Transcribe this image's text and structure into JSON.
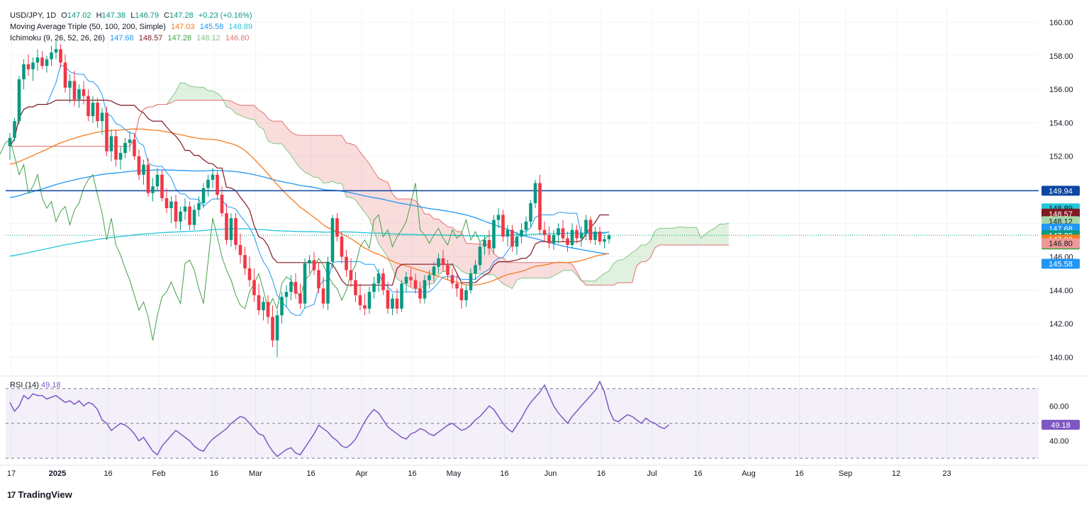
{
  "header": {
    "symbol": "USD/JPY, 1D",
    "o_label": "O",
    "o": "147.02",
    "h_label": "H",
    "h": "147.38",
    "l_label": "L",
    "l": "146.79",
    "c_label": "C",
    "c": "147.28",
    "change": "+0.23 (+0.16%)",
    "ma_label": "Moving Average Triple (50, 100, 200, Simple)",
    "ma50": "147.03",
    "ma100": "145.58",
    "ma200": "148.89",
    "ichi_label": "Ichimoku (9, 26, 52, 26, 26)",
    "ichi_conv": "147.68",
    "ichi_base": "148.57",
    "ichi_lag": "147.28",
    "ichi_spa": "148.12",
    "ichi_spb": "146.80",
    "rsi_label": "RSI (14)",
    "rsi_value": "49.18"
  },
  "branding": {
    "name": "TradingView",
    "mark": "17"
  },
  "colors": {
    "up": "#089981",
    "down": "#f23645",
    "ma50": "#f57c1f",
    "ma100": "#2196f3",
    "ma200": "#26c6da",
    "conversion": "#2196f3",
    "base": "#801922",
    "lagging": "#43a047",
    "cloud_bull": "#a5d6a7",
    "cloud_bear": "#ef9a9a",
    "hline": "#0d47a1",
    "rsi": "#7e57c2"
  },
  "chart_data": [
    {
      "type": "candlestick",
      "title": "USD/JPY, 1D",
      "ylim": [
        139,
        161
      ],
      "y_ticks": [
        "160.00",
        "158.00",
        "156.00",
        "154.00",
        "152.00",
        "150.00",
        "148.00",
        "146.00",
        "144.00",
        "142.00",
        "140.00"
      ],
      "x_tick_labels": [
        "17",
        "2025",
        "16",
        "Feb",
        "16",
        "Mar",
        "16",
        "Apr",
        "16",
        "May",
        "16",
        "Jun",
        "16",
        "Jul",
        "16",
        "Aug",
        "16",
        "Sep",
        "12",
        "23"
      ],
      "horizontal_line": 149.94,
      "last_close_line": 147.28,
      "price_labels": [
        {
          "text": "149.94",
          "value": 149.94,
          "color": "#0d47a1"
        },
        {
          "text": "148.89",
          "value": 148.89,
          "color": "#26c6da"
        },
        {
          "text": "148.57",
          "value": 148.57,
          "color": "#801922"
        },
        {
          "text": "148.12",
          "value": 148.12,
          "color": "#a5d6a7"
        },
        {
          "text": "147.68",
          "value": 147.68,
          "color": "#2196f3"
        },
        {
          "text": "147.28",
          "value": 147.28,
          "color": "#089981"
        },
        {
          "text": "147.28",
          "value": 147.28,
          "color": "#43a047"
        },
        {
          "text": "147.03",
          "value": 147.03,
          "color": "#f57c1f"
        },
        {
          "text": "146.80",
          "value": 146.8,
          "color": "#ef9a9a"
        },
        {
          "text": "145.58",
          "value": 145.58,
          "color": "#2196f3"
        }
      ],
      "candles_ohlc_approx": [
        [
          152.6,
          153.4,
          151.8,
          153.1
        ],
        [
          153.1,
          154.3,
          152.9,
          154.1
        ],
        [
          154.1,
          156.8,
          153.9,
          156.6
        ],
        [
          156.6,
          157.8,
          156.0,
          157.5
        ],
        [
          157.5,
          158.1,
          156.8,
          157.2
        ],
        [
          157.2,
          157.9,
          156.5,
          157.6
        ],
        [
          157.6,
          158.4,
          157.1,
          157.9
        ],
        [
          157.9,
          158.3,
          157.2,
          157.4
        ],
        [
          157.4,
          158.0,
          157.0,
          157.8
        ],
        [
          157.8,
          158.6,
          157.4,
          158.2
        ],
        [
          158.2,
          158.9,
          157.8,
          158.4
        ],
        [
          158.4,
          158.7,
          157.3,
          157.6
        ],
        [
          157.6,
          158.1,
          155.8,
          156.1
        ],
        [
          156.1,
          156.9,
          155.2,
          156.5
        ],
        [
          156.5,
          157.1,
          155.0,
          155.4
        ],
        [
          155.4,
          156.3,
          154.9,
          156.0
        ],
        [
          156.0,
          156.5,
          155.1,
          155.6
        ],
        [
          155.6,
          156.0,
          154.1,
          154.4
        ],
        [
          154.4,
          155.6,
          154.0,
          155.2
        ],
        [
          155.2,
          155.5,
          153.7,
          154.1
        ],
        [
          154.1,
          154.9,
          153.3,
          154.6
        ],
        [
          154.6,
          155.0,
          152.0,
          152.3
        ],
        [
          152.3,
          153.6,
          151.7,
          153.2
        ],
        [
          153.2,
          153.6,
          151.4,
          151.8
        ],
        [
          151.8,
          152.6,
          151.2,
          152.2
        ],
        [
          152.2,
          153.1,
          151.9,
          152.8
        ],
        [
          152.8,
          153.5,
          152.3,
          153.0
        ],
        [
          153.0,
          153.4,
          151.8,
          152.0
        ],
        [
          152.0,
          152.4,
          150.6,
          150.9
        ],
        [
          150.9,
          151.8,
          150.3,
          151.5
        ],
        [
          151.5,
          151.9,
          149.6,
          149.8
        ],
        [
          149.8,
          150.7,
          149.3,
          150.2
        ],
        [
          150.2,
          151.3,
          149.9,
          150.9
        ],
        [
          150.9,
          151.2,
          149.3,
          149.5
        ],
        [
          149.5,
          150.1,
          148.6,
          148.9
        ],
        [
          148.9,
          149.6,
          148.0,
          149.3
        ],
        [
          149.3,
          149.7,
          147.7,
          148.1
        ],
        [
          148.1,
          149.0,
          147.6,
          148.7
        ],
        [
          148.7,
          149.5,
          148.2,
          149.0
        ],
        [
          149.0,
          149.3,
          147.6,
          147.9
        ],
        [
          147.9,
          149.1,
          147.6,
          148.8
        ],
        [
          148.8,
          149.6,
          148.4,
          149.2
        ],
        [
          149.2,
          150.4,
          148.9,
          150.1
        ],
        [
          150.1,
          150.9,
          149.6,
          150.6
        ],
        [
          150.6,
          151.3,
          150.1,
          150.9
        ],
        [
          150.9,
          151.1,
          149.4,
          149.7
        ],
        [
          149.7,
          150.2,
          148.4,
          148.6
        ],
        [
          148.6,
          149.2,
          146.7,
          147.0
        ],
        [
          147.0,
          148.6,
          146.6,
          148.3
        ],
        [
          148.3,
          148.6,
          146.4,
          146.7
        ],
        [
          146.7,
          147.4,
          145.6,
          146.1
        ],
        [
          146.1,
          146.6,
          144.9,
          145.3
        ],
        [
          145.3,
          146.0,
          144.2,
          144.6
        ],
        [
          144.6,
          145.3,
          143.3,
          143.7
        ],
        [
          143.7,
          144.4,
          142.5,
          142.8
        ],
        [
          142.8,
          143.6,
          142.2,
          143.3
        ],
        [
          143.3,
          143.7,
          142.0,
          142.4
        ],
        [
          142.4,
          143.1,
          140.6,
          141.0
        ],
        [
          141.0,
          142.8,
          140.0,
          142.5
        ],
        [
          142.5,
          143.9,
          142.0,
          143.6
        ],
        [
          143.6,
          144.3,
          143.0,
          143.9
        ],
        [
          143.9,
          144.9,
          143.4,
          144.5
        ],
        [
          144.5,
          145.0,
          143.5,
          143.8
        ],
        [
          143.8,
          144.4,
          142.9,
          143.2
        ],
        [
          143.2,
          145.9,
          142.9,
          145.6
        ],
        [
          145.6,
          146.1,
          145.0,
          145.8
        ],
        [
          145.8,
          146.3,
          144.9,
          145.2
        ],
        [
          145.2,
          145.7,
          143.8,
          144.1
        ],
        [
          144.1,
          144.8,
          142.9,
          143.2
        ],
        [
          143.2,
          146.0,
          142.8,
          145.7
        ],
        [
          145.7,
          148.5,
          145.3,
          148.3
        ],
        [
          148.3,
          148.6,
          146.9,
          147.2
        ],
        [
          147.2,
          147.5,
          145.6,
          146.0
        ],
        [
          146.0,
          146.4,
          144.8,
          145.2
        ],
        [
          145.2,
          145.9,
          144.2,
          144.6
        ],
        [
          144.6,
          145.1,
          143.3,
          143.7
        ],
        [
          143.7,
          144.4,
          142.8,
          143.1
        ],
        [
          143.1,
          143.8,
          142.5,
          142.9
        ],
        [
          142.9,
          144.2,
          142.6,
          143.9
        ],
        [
          143.9,
          144.8,
          143.5,
          144.4
        ],
        [
          144.4,
          145.3,
          143.9,
          145.0
        ],
        [
          145.0,
          145.3,
          143.7,
          144.0
        ],
        [
          144.0,
          144.5,
          142.6,
          142.9
        ],
        [
          142.9,
          143.8,
          142.5,
          143.5
        ],
        [
          143.5,
          144.1,
          142.6,
          142.9
        ],
        [
          142.9,
          144.6,
          142.7,
          144.4
        ],
        [
          144.4,
          145.1,
          143.9,
          144.8
        ],
        [
          144.8,
          145.3,
          144.2,
          144.6
        ],
        [
          144.6,
          145.0,
          143.8,
          144.1
        ],
        [
          144.1,
          144.5,
          143.2,
          143.5
        ],
        [
          143.5,
          144.9,
          143.2,
          144.6
        ],
        [
          144.6,
          145.2,
          144.1,
          144.9
        ],
        [
          144.9,
          145.7,
          144.5,
          145.4
        ],
        [
          145.4,
          146.2,
          145.0,
          145.9
        ],
        [
          145.9,
          146.4,
          145.1,
          145.5
        ],
        [
          145.5,
          145.8,
          144.6,
          144.9
        ],
        [
          144.9,
          145.3,
          144.1,
          144.4
        ],
        [
          144.4,
          144.9,
          143.6,
          144.1
        ],
        [
          144.1,
          144.4,
          142.9,
          143.4
        ],
        [
          143.4,
          144.3,
          143.0,
          144.0
        ],
        [
          144.0,
          145.3,
          143.8,
          145.0
        ],
        [
          145.0,
          145.8,
          144.6,
          145.5
        ],
        [
          145.5,
          146.9,
          145.2,
          146.6
        ],
        [
          146.6,
          147.3,
          146.1,
          147.0
        ],
        [
          147.0,
          147.6,
          146.1,
          146.5
        ],
        [
          146.5,
          148.5,
          146.2,
          148.2
        ],
        [
          148.2,
          148.9,
          147.7,
          148.5
        ],
        [
          148.5,
          148.8,
          146.9,
          147.2
        ],
        [
          147.2,
          147.9,
          146.6,
          147.6
        ],
        [
          147.6,
          147.9,
          146.3,
          146.6
        ],
        [
          146.6,
          147.5,
          146.1,
          147.2
        ],
        [
          147.2,
          148.0,
          146.8,
          147.6
        ],
        [
          147.6,
          148.4,
          147.2,
          148.1
        ],
        [
          148.1,
          149.4,
          147.8,
          149.2
        ],
        [
          149.2,
          150.6,
          148.9,
          150.4
        ],
        [
          150.4,
          150.9,
          147.3,
          147.6
        ],
        [
          147.6,
          148.1,
          146.9,
          147.3
        ],
        [
          147.3,
          147.8,
          146.5,
          146.8
        ],
        [
          146.8,
          147.6,
          146.4,
          147.3
        ],
        [
          147.3,
          148.0,
          146.8,
          147.7
        ],
        [
          147.7,
          148.2,
          146.9,
          147.1
        ],
        [
          147.1,
          147.5,
          146.3,
          146.7
        ],
        [
          146.7,
          148.0,
          146.5,
          147.6
        ],
        [
          147.6,
          147.9,
          146.8,
          147.1
        ],
        [
          147.1,
          147.8,
          146.6,
          147.4
        ],
        [
          147.4,
          148.5,
          147.0,
          148.2
        ],
        [
          148.2,
          148.4,
          146.8,
          147.0
        ],
        [
          147.0,
          147.8,
          146.7,
          147.5
        ],
        [
          147.5,
          147.8,
          146.7,
          146.9
        ],
        [
          146.9,
          147.3,
          146.5,
          147.05
        ],
        [
          147.05,
          147.38,
          146.79,
          147.28
        ]
      ]
    },
    {
      "type": "line",
      "title": "RSI (14)",
      "ylim": [
        28,
        76
      ],
      "y_ticks": [
        "60.00",
        "40.00"
      ],
      "bands": [
        70,
        50,
        30
      ],
      "value_label": "49.18",
      "values": [
        62,
        57,
        60,
        66,
        64,
        67,
        66,
        66,
        64,
        65,
        66,
        64,
        62,
        63,
        61,
        63,
        60,
        62,
        61,
        58,
        52,
        50,
        46,
        48,
        50,
        49,
        47,
        44,
        40,
        42,
        38,
        34,
        32,
        37,
        40,
        43,
        46,
        44,
        42,
        40,
        37,
        35,
        34,
        38,
        41,
        43,
        45,
        47,
        50,
        52,
        54,
        53,
        50,
        47,
        44,
        43,
        38,
        34,
        31,
        33,
        35,
        36,
        33,
        32,
        36,
        40,
        44,
        49,
        47,
        45,
        42,
        40,
        37,
        36,
        38,
        41,
        46,
        51,
        55,
        58,
        56,
        52,
        48,
        46,
        44,
        42,
        41,
        44,
        45,
        47,
        46,
        44,
        43,
        45,
        47,
        49,
        50,
        48,
        46,
        47,
        49,
        52,
        54,
        57,
        60,
        58,
        54,
        50,
        47,
        45,
        49,
        53,
        58,
        62,
        65,
        68,
        72,
        66,
        60,
        56,
        53,
        50,
        54,
        57,
        60,
        63,
        66,
        69,
        74,
        68,
        58,
        52,
        51,
        53,
        55,
        54,
        52,
        50,
        53,
        51,
        50,
        48,
        47,
        49.18
      ]
    }
  ]
}
